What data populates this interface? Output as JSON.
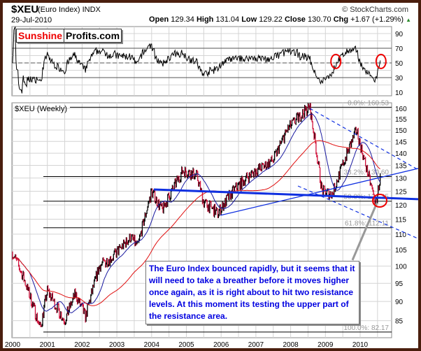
{
  "header": {
    "symbol": "$XEU",
    "name": "(Euro Index) INDX",
    "date": "29-Jul-2010",
    "copyright": "© StockCharts.com",
    "open_label": "Open",
    "open": "129.34",
    "high_label": "High",
    "high": "131.04",
    "low_label": "Low",
    "low": "129.22",
    "close_label": "Close",
    "close": "130.70",
    "chg_label": "Chg",
    "chg": "+1.67 (+1.29%)",
    "chg_icon": "up-triangle-icon",
    "chg_color": "#2a8a2a"
  },
  "logo": {
    "part1": "Sunshine",
    "part2": "Profits.com"
  },
  "note": "The Euro Index bounced rapidly, but it seems that it will need  to take a breather before it moves higher once again, as it is right about to hit two resistance levels. At this moment its testing the upper part of the resistance area.",
  "chart_data": [
    {
      "type": "line",
      "panel": "RSI",
      "y_ticks": [
        "90",
        "70",
        "50",
        "30",
        "10"
      ],
      "ylim": [
        10,
        95
      ],
      "reference_lines": [
        70,
        50,
        30
      ],
      "highlight_circles_at": [
        2009.3,
        2010.6
      ]
    },
    {
      "type": "candlestick",
      "title": "$XEU (Weekly)",
      "y_scale": "log",
      "ylim": [
        80,
        165
      ],
      "y_ticks": [
        "160",
        "155",
        "150",
        "145",
        "140",
        "135",
        "130",
        "125",
        "120",
        "115",
        "110",
        "105",
        "100",
        "95",
        "90",
        "85"
      ],
      "x_ticks": [
        "2000",
        "2001",
        "2002",
        "2003",
        "2004",
        "2005",
        "2006",
        "2007",
        "2008",
        "2009",
        "2010"
      ],
      "approx_close_keypoints": [
        [
          2000.0,
          104
        ],
        [
          2000.3,
          97
        ],
        [
          2000.8,
          83
        ],
        [
          2001.0,
          93
        ],
        [
          2001.3,
          88
        ],
        [
          2001.5,
          85
        ],
        [
          2001.8,
          92
        ],
        [
          2002.1,
          86
        ],
        [
          2002.5,
          100
        ],
        [
          2002.9,
          103
        ],
        [
          2003.4,
          109
        ],
        [
          2003.6,
          106
        ],
        [
          2004.0,
          125
        ],
        [
          2004.3,
          118
        ],
        [
          2004.9,
          133
        ],
        [
          2005.3,
          131
        ],
        [
          2005.5,
          121
        ],
        [
          2005.9,
          117
        ],
        [
          2006.4,
          126
        ],
        [
          2006.9,
          132
        ],
        [
          2007.5,
          137
        ],
        [
          2007.9,
          150
        ],
        [
          2008.3,
          157
        ],
        [
          2008.55,
          160.5
        ],
        [
          2008.75,
          140
        ],
        [
          2008.9,
          125
        ],
        [
          2009.2,
          124
        ],
        [
          2009.6,
          139
        ],
        [
          2009.9,
          150
        ],
        [
          2010.1,
          138
        ],
        [
          2010.45,
          120
        ],
        [
          2010.58,
          130.7
        ]
      ],
      "fibonacci": [
        {
          "label": "0.0%: 160.53",
          "value": 160.53
        },
        {
          "label": "38.2%: 130.60",
          "value": 130.6
        },
        {
          "label": "50.0%: 121.35",
          "value": 121.35
        },
        {
          "label": "61.8%: 112.11",
          "value": 112.11
        },
        {
          "label": "100.0%: 82.17",
          "value": 82.17
        }
      ],
      "moving_averages": [
        {
          "color": "#1a1aa0"
        },
        {
          "color": "#e01010"
        }
      ],
      "bar_colors": {
        "up": "#000000",
        "down": "#d0103a"
      }
    }
  ]
}
